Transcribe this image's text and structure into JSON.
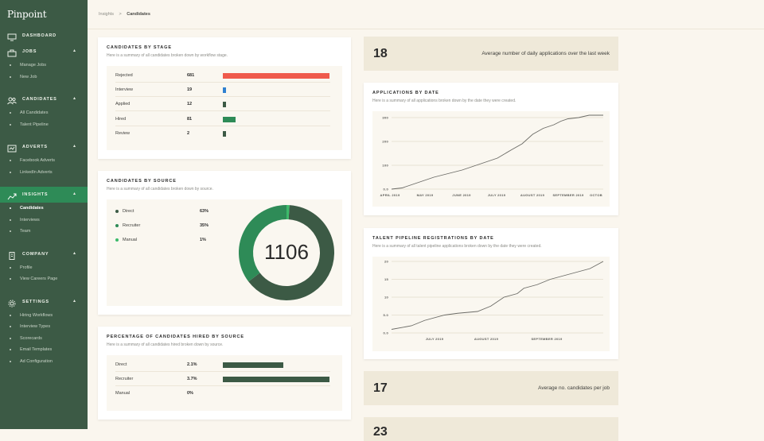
{
  "app": {
    "logo": "Pinpoint"
  },
  "sidebar": {
    "sections": [
      {
        "label": "DASHBOARD",
        "icon": "monitor-icon",
        "items": []
      },
      {
        "label": "JOBS",
        "icon": "briefcase-icon",
        "items": [
          "Manage Jobs",
          "New Job"
        ]
      },
      {
        "label": "CANDIDATES",
        "icon": "users-icon",
        "items": [
          "All Candidates",
          "Talent Pipeline"
        ]
      },
      {
        "label": "ADVERTS",
        "icon": "megaphone-icon",
        "items": [
          "Facebook Adverts",
          "LinkedIn Adverts"
        ]
      },
      {
        "label": "INSIGHTS",
        "icon": "chart-icon",
        "items": [
          "Candidates",
          "Interviews",
          "Team"
        ]
      },
      {
        "label": "COMPANY",
        "icon": "building-icon",
        "items": [
          "Profile",
          "View Careers Page"
        ]
      },
      {
        "label": "SETTINGS",
        "icon": "gear-icon",
        "items": [
          "Hiring Workflows",
          "Interview Types",
          "Scorecards",
          "Email Templates",
          "Ad Configuration"
        ]
      }
    ],
    "active_section": "INSIGHTS",
    "active_item": "Candidates"
  },
  "breadcrumb": {
    "parent": "Insights",
    "separator": ">",
    "current": "Candidates"
  },
  "stage_card": {
    "title": "CANDIDATES BY STAGE",
    "subtitle": "Here is a summary of all candidates broken down by workflow stage.",
    "rows": [
      {
        "name": "Rejected",
        "value": "681",
        "count": 681,
        "color": "#ef5a4c"
      },
      {
        "name": "Interview",
        "value": "19",
        "count": 19,
        "color": "#2f80d0"
      },
      {
        "name": "Applied",
        "value": "12",
        "count": 12,
        "color": "#3c5a45"
      },
      {
        "name": "Hired",
        "value": "81",
        "count": 81,
        "color": "#2e8b57"
      },
      {
        "name": "Review",
        "value": "2",
        "count": 2,
        "color": "#3c5a45"
      }
    ]
  },
  "source_card": {
    "title": "CANDIDATES BY SOURCE",
    "subtitle": "Here is a summary of all candidates broken down by source.",
    "total": "1106",
    "items": [
      {
        "name": "Direct",
        "value": "63%",
        "pct": 63,
        "color": "#3c5a45"
      },
      {
        "name": "Recruiter",
        "value": "35%",
        "pct": 35,
        "color": "#2e8b57"
      },
      {
        "name": "Manual",
        "value": "1%",
        "pct": 1,
        "color": "#3cba6a"
      }
    ]
  },
  "hired_card": {
    "title": "PERCENTAGE OF CANDIDATES HIRED BY SOURCE",
    "subtitle": "Here is a summary of all candidates hired broken down by source.",
    "rows": [
      {
        "name": "Direct",
        "value": "2.1%",
        "pct": 2.1,
        "color": "#3c5a45"
      },
      {
        "name": "Recruiter",
        "value": "3.7%",
        "pct": 3.7,
        "color": "#3c5a45"
      },
      {
        "name": "Manual",
        "value": "0%",
        "pct": 0,
        "color": "#3c5a45"
      }
    ]
  },
  "stat_daily": {
    "number": "18",
    "label": "Average number of daily applications over the last week"
  },
  "stat_per_job": {
    "number": "17",
    "label": "Average no. candidates per job"
  },
  "stat_partial": {
    "number": "23"
  },
  "chart_data": [
    {
      "type": "line",
      "title": "APPLICATIONS BY DATE",
      "subtitle": "Here is a summary of all applications broken down by the date they were created.",
      "ylim": [
        0,
        300
      ],
      "yticks": [
        "0.0",
        "100",
        "200",
        "300"
      ],
      "xticks": [
        "APRIL 2019",
        "MAY 2019",
        "JUNE 2019",
        "JULY 2019",
        "AUGUST 2019",
        "SEPTEMBER 2019",
        "OCTOB"
      ],
      "x": [
        0,
        0.3,
        0.5,
        0.9,
        1.2,
        1.6,
        2.0,
        2.3,
        2.7,
        3.0,
        3.4,
        3.7,
        4.0,
        4.3,
        4.6,
        4.8,
        5.0,
        5.3,
        5.6,
        6.0
      ],
      "y": [
        0,
        5,
        15,
        35,
        50,
        65,
        80,
        95,
        115,
        130,
        165,
        190,
        230,
        255,
        270,
        285,
        295,
        300,
        310,
        310
      ],
      "grid": true
    },
    {
      "type": "line",
      "title": "TALENT PIPELINE REGISTRATIONS BY DATE",
      "subtitle": "Here is a summary of all talent pipeline applications broken down by the date they were created.",
      "ylim": [
        0,
        20
      ],
      "yticks": [
        "0.0",
        "5.0",
        "10",
        "15",
        "20"
      ],
      "xticks": [
        "JULY 2019",
        "AUGUST 2019",
        "SEPTEMBER 2019"
      ],
      "x": [
        0,
        0.3,
        0.5,
        0.8,
        1.0,
        1.3,
        1.5,
        1.7,
        1.9,
        2.0,
        2.2,
        2.4,
        2.6,
        2.8,
        3.0,
        3.2
      ],
      "y": [
        1,
        2,
        3.5,
        5,
        5.5,
        6,
        7.5,
        10,
        11,
        12.5,
        13.5,
        15,
        16,
        17,
        18,
        20
      ],
      "grid": true
    }
  ]
}
